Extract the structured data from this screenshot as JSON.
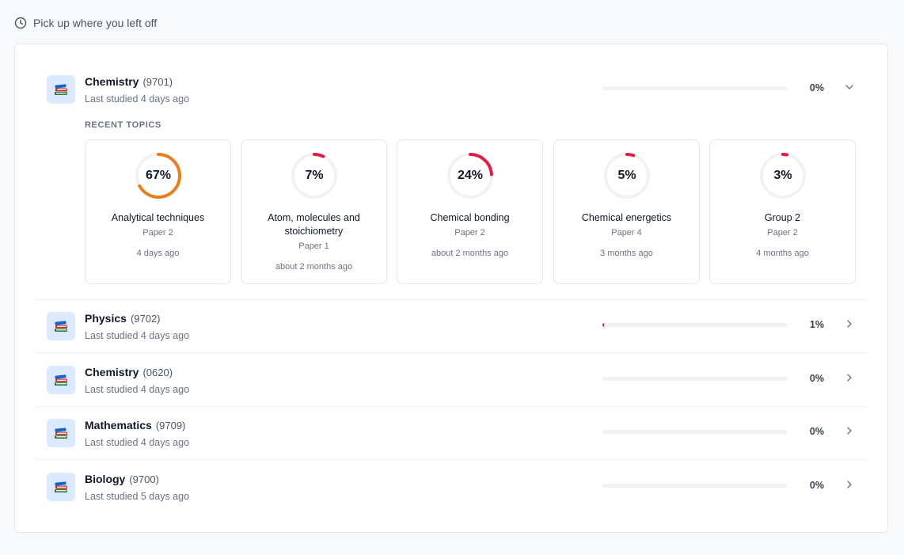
{
  "header": {
    "title": "Pick up where you left off",
    "icon": "clock-icon"
  },
  "expanded_subject": {
    "name": "Chemistry",
    "code": "(9701)",
    "last_studied": "Last studied 4 days ago",
    "progress": 0,
    "progress_label": "0%",
    "icon": "books-icon",
    "recent_label": "RECENT TOPICS",
    "topics": [
      {
        "name": "Analytical techniques",
        "paper": "Paper 2",
        "time": "4 days ago",
        "progress": 67,
        "progress_label": "67%",
        "color": "#e67e22"
      },
      {
        "name": "Atom, molecules and stoichiometry",
        "paper": "Paper 1",
        "time": "about 2 months ago",
        "progress": 7,
        "progress_label": "7%",
        "color": "#e11d48"
      },
      {
        "name": "Chemical bonding",
        "paper": "Paper 2",
        "time": "about 2 months ago",
        "progress": 24,
        "progress_label": "24%",
        "color": "#e11d48"
      },
      {
        "name": "Chemical energetics",
        "paper": "Paper 4",
        "time": "3 months ago",
        "progress": 5,
        "progress_label": "5%",
        "color": "#e11d48"
      },
      {
        "name": "Group 2",
        "paper": "Paper 2",
        "time": "4 months ago",
        "progress": 3,
        "progress_label": "3%",
        "color": "#e11d48"
      }
    ]
  },
  "subjects": [
    {
      "name": "Physics",
      "code": "(9702)",
      "last_studied": "Last studied 4 days ago",
      "progress": 1,
      "progress_label": "1%"
    },
    {
      "name": "Chemistry",
      "code": "(0620)",
      "last_studied": "Last studied 4 days ago",
      "progress": 0,
      "progress_label": "0%"
    },
    {
      "name": "Mathematics",
      "code": "(9709)",
      "last_studied": "Last studied 4 days ago",
      "progress": 0,
      "progress_label": "0%"
    },
    {
      "name": "Biology",
      "code": "(9700)",
      "last_studied": "Last studied 5 days ago",
      "progress": 0,
      "progress_label": "0%"
    }
  ],
  "colors": {
    "accent_orange": "#e67e22",
    "accent_red": "#e11d48",
    "icon_bg": "#dbeafe"
  }
}
